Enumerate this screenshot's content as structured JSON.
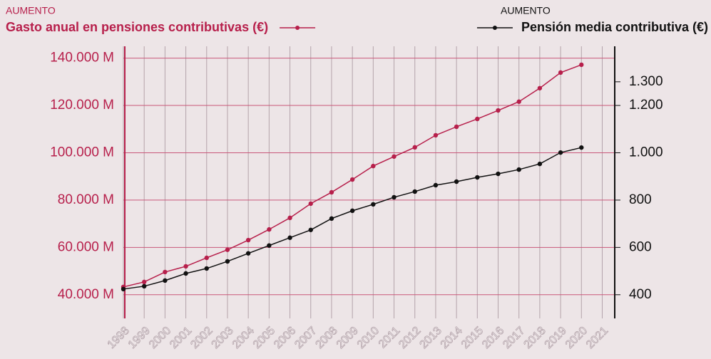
{
  "chart_data": {
    "type": "line",
    "legend_label_left": "AUMENTO",
    "legend_label_right": "AUMENTO",
    "x": [
      1998,
      1999,
      2000,
      2001,
      2002,
      2003,
      2004,
      2005,
      2006,
      2007,
      2008,
      2009,
      2010,
      2011,
      2012,
      2013,
      2014,
      2015,
      2016,
      2017,
      2018,
      2019,
      2020
    ],
    "series": [
      {
        "name": "Gasto anual en pensiones contributivas (€)",
        "color": "#b71f4b",
        "axis": "y",
        "values": [
          43300,
          45400,
          49600,
          52000,
          55600,
          59000,
          63100,
          67600,
          72500,
          78500,
          83300,
          88700,
          94400,
          98400,
          102300,
          107400,
          111000,
          114300,
          117900,
          121600,
          127300,
          133900,
          137200
        ]
      },
      {
        "name": "Pensión media contributiva (€)",
        "color": "#111111",
        "axis": "y2",
        "values": [
          424,
          436,
          460,
          490,
          511,
          541,
          575,
          608,
          641,
          674,
          722,
          755,
          782,
          812,
          836,
          863,
          878,
          896,
          911,
          929,
          953,
          1001,
          1022
        ]
      }
    ],
    "xlim": [
      1998,
      2021.6
    ],
    "xticks": [
      1998,
      1999,
      2000,
      2001,
      2002,
      2003,
      2004,
      2005,
      2006,
      2007,
      2008,
      2009,
      2010,
      2011,
      2012,
      2013,
      2014,
      2015,
      2016,
      2017,
      2018,
      2019,
      2020,
      2021
    ],
    "ylim": [
      30000,
      145000
    ],
    "yticks": [
      {
        "value": 40000,
        "label": "40.000 M"
      },
      {
        "value": 60000,
        "label": "60.000 M"
      },
      {
        "value": 80000,
        "label": "80.000 M"
      },
      {
        "value": 100000,
        "label": "100.000 M"
      },
      {
        "value": 120000,
        "label": "120.000 M"
      },
      {
        "value": 140000,
        "label": "140.000 M"
      }
    ],
    "y2lim": [
      300,
      1450
    ],
    "y2ticks": [
      400,
      600,
      800,
      {
        "value": 1000,
        "label": "1.000"
      },
      {
        "value": 1200,
        "label": "1.200"
      },
      {
        "value": 1300,
        "label": "1.300"
      }
    ],
    "grid": true
  }
}
